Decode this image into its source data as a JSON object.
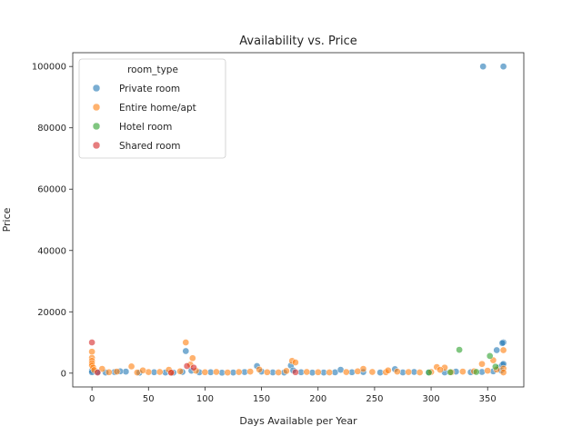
{
  "chart_data": {
    "type": "scatter",
    "title": "Availability vs. Price",
    "xlabel": "Days Available per Year",
    "ylabel": "Price",
    "xlim": [
      -17,
      382
    ],
    "ylim": [
      -4500,
      104500
    ],
    "x_ticks": [
      0,
      50,
      100,
      150,
      200,
      250,
      300,
      350
    ],
    "y_ticks": [
      0,
      20000,
      40000,
      60000,
      80000,
      100000
    ],
    "grid": false,
    "legend": {
      "title": "room_type",
      "placement": "top-left"
    },
    "series": [
      {
        "name": "Private room",
        "color": "#1f77b4",
        "points": [
          [
            346,
            100000
          ],
          [
            364,
            100000
          ],
          [
            364,
            10000
          ],
          [
            363,
            9800
          ],
          [
            83,
            7200
          ],
          [
            358,
            7500
          ],
          [
            146,
            2300
          ],
          [
            176,
            2500
          ],
          [
            0,
            800
          ],
          [
            0,
            300
          ],
          [
            5,
            400
          ],
          [
            12,
            200
          ],
          [
            20,
            350
          ],
          [
            30,
            500
          ],
          [
            42,
            150
          ],
          [
            55,
            300
          ],
          [
            65,
            220
          ],
          [
            72,
            180
          ],
          [
            80,
            400
          ],
          [
            95,
            260
          ],
          [
            105,
            300
          ],
          [
            115,
            150
          ],
          [
            125,
            200
          ],
          [
            135,
            350
          ],
          [
            150,
            500
          ],
          [
            160,
            250
          ],
          [
            170,
            200
          ],
          [
            185,
            300
          ],
          [
            195,
            180
          ],
          [
            205,
            220
          ],
          [
            215,
            260
          ],
          [
            220,
            1100
          ],
          [
            230,
            300
          ],
          [
            240,
            350
          ],
          [
            255,
            200
          ],
          [
            268,
            1300
          ],
          [
            275,
            250
          ],
          [
            285,
            400
          ],
          [
            298,
            300
          ],
          [
            312,
            250
          ],
          [
            322,
            500
          ],
          [
            335,
            300
          ],
          [
            345,
            400
          ],
          [
            355,
            600
          ],
          [
            360,
            1800
          ],
          [
            363,
            2700
          ],
          [
            364,
            3000
          ],
          [
            362,
            900
          ],
          [
            25,
            600
          ],
          [
            88,
            800
          ],
          [
            178,
            900
          ]
        ]
      },
      {
        "name": "Entire home/apt",
        "color": "#ff7f0e",
        "points": [
          [
            0,
            7000
          ],
          [
            0,
            5000
          ],
          [
            0,
            4000
          ],
          [
            0,
            3200
          ],
          [
            0,
            2500
          ],
          [
            1,
            1800
          ],
          [
            2,
            1000
          ],
          [
            83,
            10000
          ],
          [
            89,
            4900
          ],
          [
            87,
            2800
          ],
          [
            35,
            2200
          ],
          [
            9,
            1400
          ],
          [
            177,
            4000
          ],
          [
            180,
            3500
          ],
          [
            345,
            3000
          ],
          [
            364,
            7500
          ],
          [
            355,
            4200
          ],
          [
            305,
            2000
          ],
          [
            312,
            1800
          ],
          [
            240,
            1400
          ],
          [
            15,
            300
          ],
          [
            22,
            500
          ],
          [
            40,
            200
          ],
          [
            50,
            350
          ],
          [
            60,
            400
          ],
          [
            70,
            250
          ],
          [
            78,
            600
          ],
          [
            92,
            800
          ],
          [
            100,
            300
          ],
          [
            110,
            400
          ],
          [
            120,
            200
          ],
          [
            130,
            350
          ],
          [
            140,
            500
          ],
          [
            155,
            300
          ],
          [
            165,
            250
          ],
          [
            172,
            700
          ],
          [
            190,
            400
          ],
          [
            200,
            300
          ],
          [
            210,
            250
          ],
          [
            225,
            350
          ],
          [
            235,
            600
          ],
          [
            248,
            400
          ],
          [
            260,
            300
          ],
          [
            270,
            500
          ],
          [
            280,
            350
          ],
          [
            290,
            250
          ],
          [
            300,
            400
          ],
          [
            318,
            300
          ],
          [
            328,
            500
          ],
          [
            338,
            600
          ],
          [
            350,
            800
          ],
          [
            358,
            1200
          ],
          [
            364,
            1500
          ],
          [
            364,
            250
          ],
          [
            45,
            900
          ],
          [
            68,
            1100
          ],
          [
            148,
            1200
          ],
          [
            262,
            900
          ],
          [
            308,
            1100
          ]
        ]
      },
      {
        "name": "Hotel room",
        "color": "#2ca02c",
        "points": [
          [
            325,
            7600
          ],
          [
            352,
            5600
          ],
          [
            357,
            2100
          ],
          [
            298,
            200
          ],
          [
            317,
            300
          ],
          [
            340,
            400
          ]
        ]
      },
      {
        "name": "Shared room",
        "color": "#d62728",
        "points": [
          [
            0,
            10000
          ],
          [
            84,
            2300
          ],
          [
            90,
            1800
          ],
          [
            5,
            200
          ],
          [
            70,
            150
          ],
          [
            180,
            300
          ]
        ]
      }
    ]
  }
}
